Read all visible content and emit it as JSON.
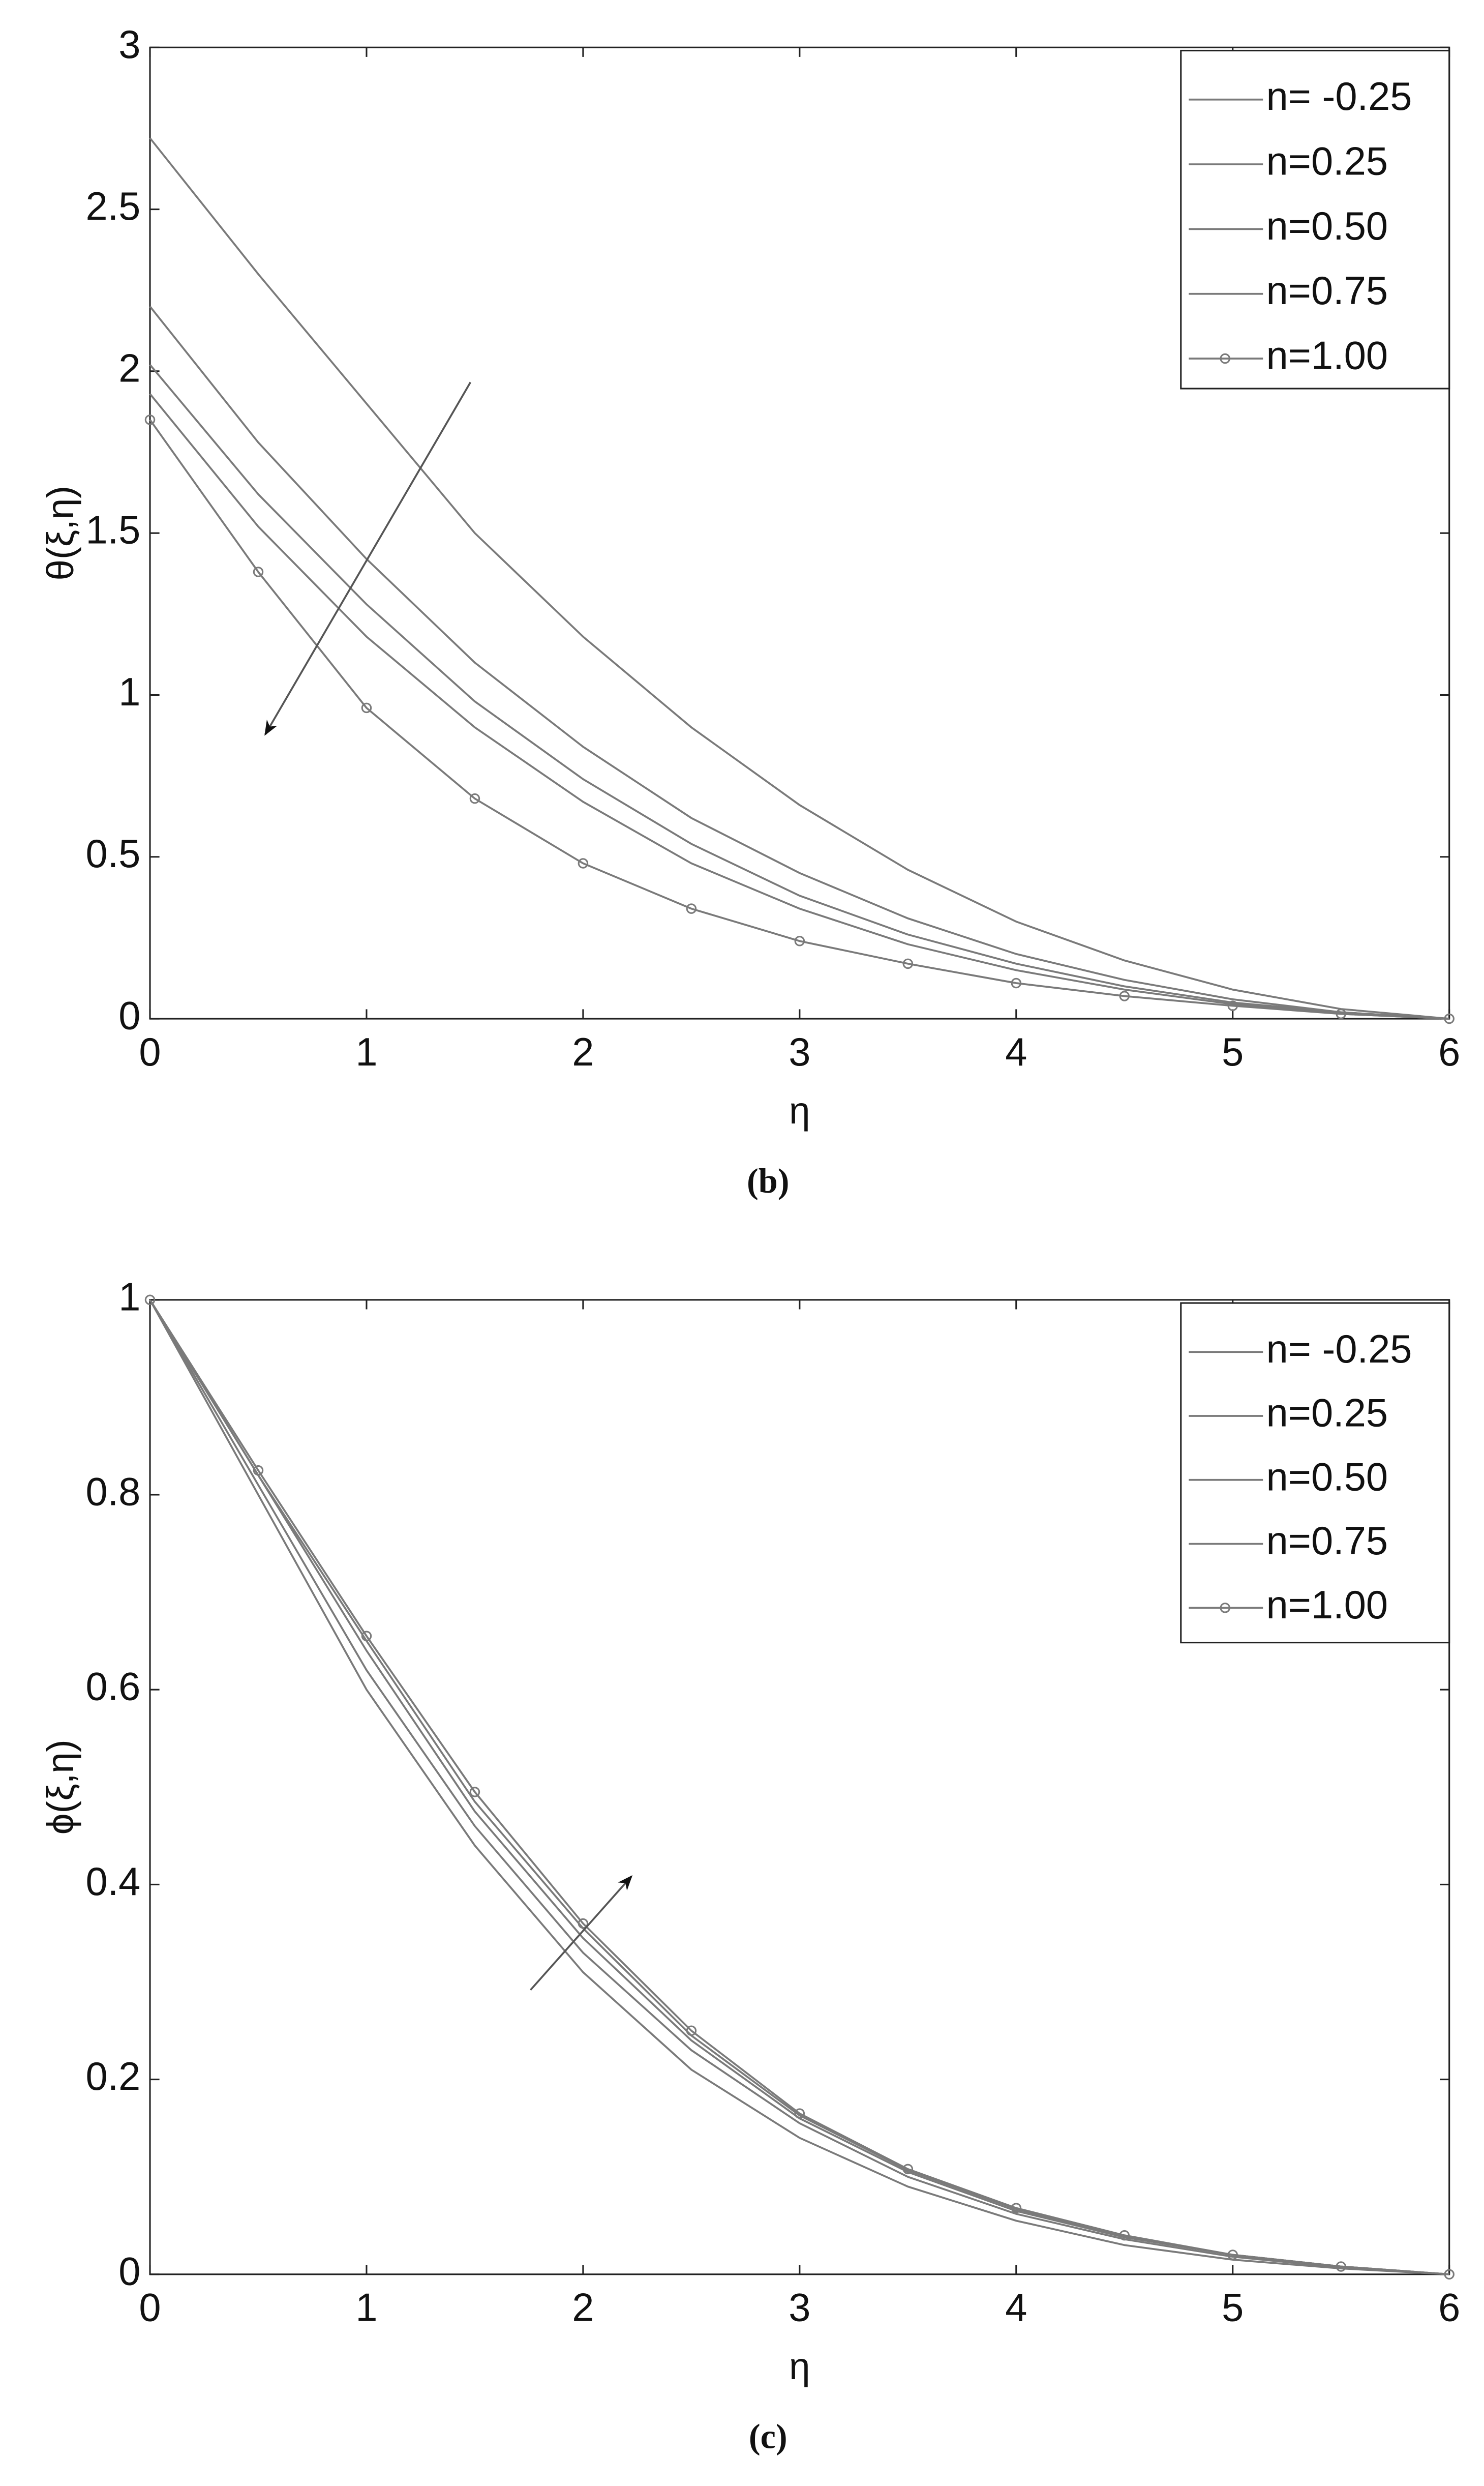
{
  "chart_data": [
    {
      "type": "line",
      "caption": "(b)",
      "xlabel": "η",
      "ylabel": "θ(ξ,η)",
      "x": [
        0,
        0.5,
        1,
        1.5,
        2,
        2.5,
        3,
        3.5,
        4,
        4.5,
        5,
        5.5,
        6
      ],
      "xlim": [
        0,
        6
      ],
      "xticks": [
        0,
        1,
        2,
        3,
        4,
        5,
        6
      ],
      "ylim": [
        0,
        3
      ],
      "yticks": [
        0,
        0.5,
        1,
        1.5,
        2,
        2.5,
        3
      ],
      "legend": "upper right",
      "series": [
        {
          "name": "n= -0.25",
          "color": "#7a7a7a",
          "values": [
            2.72,
            2.3,
            1.9,
            1.5,
            1.18,
            0.9,
            0.66,
            0.46,
            0.3,
            0.18,
            0.09,
            0.03,
            0
          ]
        },
        {
          "name": "n=0.25",
          "color": "#7a7a7a",
          "values": [
            2.2,
            1.78,
            1.42,
            1.1,
            0.84,
            0.62,
            0.45,
            0.31,
            0.2,
            0.12,
            0.06,
            0.02,
            0
          ]
        },
        {
          "name": "n=0.50",
          "color": "#7a7a7a",
          "values": [
            2.02,
            1.62,
            1.28,
            0.98,
            0.74,
            0.54,
            0.38,
            0.26,
            0.17,
            0.1,
            0.05,
            0.02,
            0
          ]
        },
        {
          "name": "n=0.75",
          "color": "#7a7a7a",
          "values": [
            1.93,
            1.52,
            1.18,
            0.9,
            0.67,
            0.48,
            0.34,
            0.23,
            0.15,
            0.09,
            0.045,
            0.015,
            0
          ]
        },
        {
          "name": "n=1.00",
          "color": "#7a7a7a",
          "marker": "circle",
          "values": [
            1.85,
            1.38,
            0.96,
            0.68,
            0.48,
            0.34,
            0.24,
            0.17,
            0.11,
            0.07,
            0.04,
            0.015,
            0
          ]
        }
      ]
    },
    {
      "type": "line",
      "caption": "(c)",
      "xlabel": "η",
      "ylabel": "ϕ(ξ,η)",
      "x": [
        0,
        0.5,
        1,
        1.5,
        2,
        2.5,
        3,
        3.5,
        4,
        4.5,
        5,
        5.5,
        6
      ],
      "xlim": [
        0,
        6
      ],
      "xticks": [
        0,
        1,
        2,
        3,
        4,
        5,
        6
      ],
      "ylim": [
        0,
        1
      ],
      "yticks": [
        0,
        0.2,
        0.4,
        0.6,
        0.8,
        1
      ],
      "legend": "upper right",
      "series": [
        {
          "name": "n= -0.25",
          "color": "#7a7a7a",
          "values": [
            1,
            0.8,
            0.6,
            0.44,
            0.31,
            0.21,
            0.14,
            0.09,
            0.055,
            0.03,
            0.015,
            0.006,
            0
          ]
        },
        {
          "name": "n=0.25",
          "color": "#7a7a7a",
          "values": [
            1,
            0.81,
            0.62,
            0.46,
            0.33,
            0.23,
            0.155,
            0.1,
            0.062,
            0.036,
            0.018,
            0.007,
            0
          ]
        },
        {
          "name": "n=0.50",
          "color": "#7a7a7a",
          "values": [
            1,
            0.82,
            0.64,
            0.475,
            0.345,
            0.24,
            0.16,
            0.105,
            0.065,
            0.038,
            0.02,
            0.008,
            0
          ]
        },
        {
          "name": "n=0.75",
          "color": "#7a7a7a",
          "values": [
            1,
            0.82,
            0.65,
            0.485,
            0.355,
            0.245,
            0.163,
            0.107,
            0.067,
            0.039,
            0.02,
            0.008,
            0
          ]
        },
        {
          "name": "n=1.00",
          "color": "#7a7a7a",
          "marker": "circle",
          "values": [
            1,
            0.825,
            0.655,
            0.495,
            0.36,
            0.25,
            0.165,
            0.108,
            0.068,
            0.04,
            0.02,
            0.008,
            0
          ]
        }
      ]
    }
  ]
}
